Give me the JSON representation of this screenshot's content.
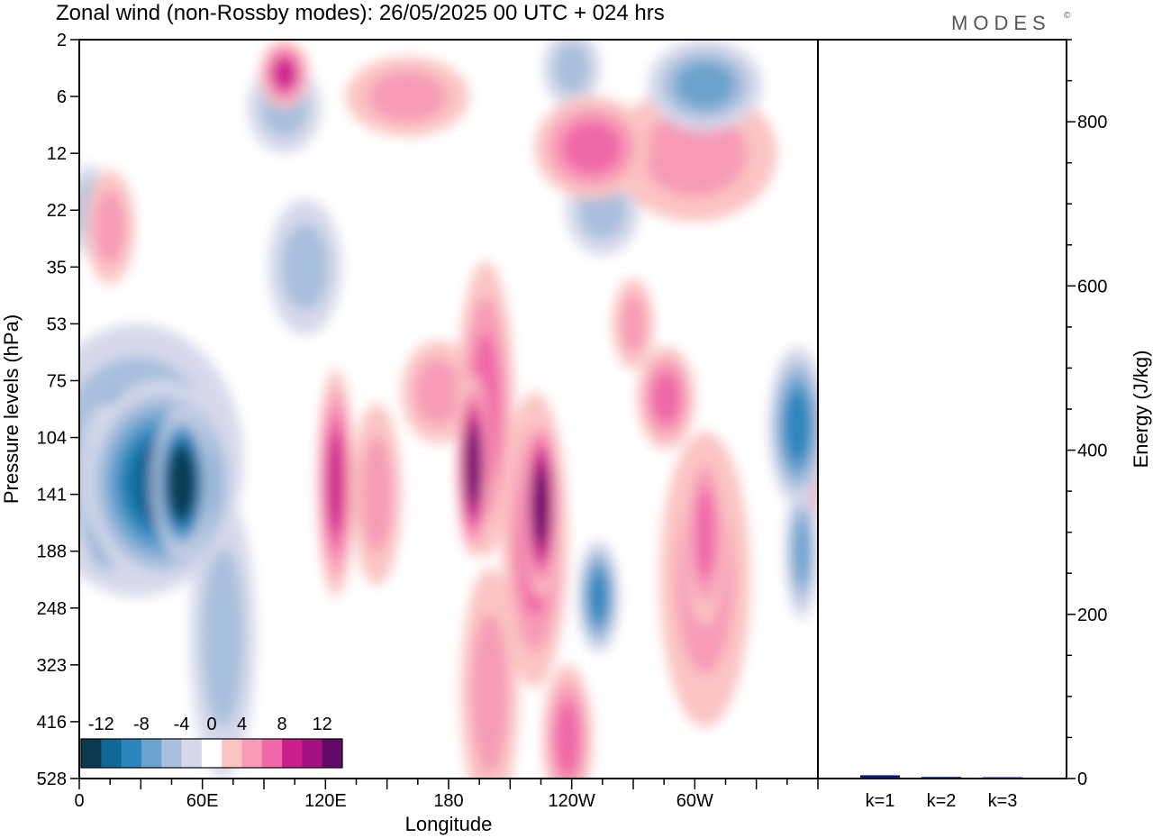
{
  "header": {
    "title": "Zonal wind (non-Rossby modes):  26/05/2025  00 UTC  + 024 hrs",
    "logo": "MODES",
    "logo_mark": "©"
  },
  "chart_data": [
    {
      "type": "heatmap",
      "title": "Zonal wind (non-Rossby modes):  26/05/2025  00 UTC  + 024 hrs",
      "xlabel": "Longitude",
      "ylabel": "Pressure levels (hPa)",
      "x_ticks": [
        "0",
        "60E",
        "120E",
        "180",
        "120W",
        "60W"
      ],
      "x_tick_degrees": [
        0,
        60,
        120,
        180,
        240,
        300
      ],
      "xlim_degrees": [
        0,
        360
      ],
      "y_ticks": [
        "2",
        "6",
        "12",
        "22",
        "35",
        "53",
        "75",
        "104",
        "141",
        "188",
        "248",
        "323",
        "416",
        "528"
      ],
      "colorbar": {
        "labels": [
          "-12",
          "-8",
          "-4",
          "0",
          "4",
          "8",
          "12"
        ],
        "levels": [
          -14,
          -12,
          -10,
          -8,
          -6,
          -4,
          -2,
          2,
          4,
          6,
          8,
          10,
          12,
          14
        ],
        "colors": [
          "#0b3a52",
          "#0f6896",
          "#2b86bd",
          "#6aa3cd",
          "#a8bfdd",
          "#d6d9ea",
          "#ffffff",
          "#fac4c2",
          "#f79bb7",
          "#ef68a8",
          "#cc1f8d",
          "#a3107f",
          "#610a6a"
        ]
      },
      "features": [
        {
          "lon": 50,
          "lev": 7.8,
          "value": -14,
          "rx": 14,
          "ry": 1.3
        },
        {
          "lon": 40,
          "lev": 7.8,
          "value": -10,
          "rx": 38,
          "ry": 1.8
        },
        {
          "lon": 14,
          "lev": 8.0,
          "value": -9,
          "rx": 16,
          "ry": 1.6
        },
        {
          "lon": 28,
          "lev": 7.4,
          "value": -6,
          "rx": 52,
          "ry": 2.4
        },
        {
          "lon": 70,
          "lev": 10.5,
          "value": -3,
          "rx": 16,
          "ry": 2.5
        },
        {
          "lon": 5,
          "lev": 3.0,
          "value": -3,
          "rx": 10,
          "ry": 0.8
        },
        {
          "lon": 110,
          "lev": 4.0,
          "value": -3,
          "rx": 18,
          "ry": 1.2
        },
        {
          "lon": 100,
          "lev": 1.2,
          "value": -4,
          "rx": 18,
          "ry": 0.8
        },
        {
          "lon": 195,
          "lev": 6.3,
          "value": -6,
          "rx": 8,
          "ry": 1.0
        },
        {
          "lon": 253,
          "lev": 9.8,
          "value": -7,
          "rx": 10,
          "ry": 1.0
        },
        {
          "lon": 350,
          "lev": 6.8,
          "value": -7,
          "rx": 14,
          "ry": 1.4
        },
        {
          "lon": 352,
          "lev": 9.0,
          "value": -5,
          "rx": 8,
          "ry": 1.2
        },
        {
          "lon": 305,
          "lev": 0.8,
          "value": -5,
          "rx": 28,
          "ry": 0.8
        },
        {
          "lon": 240,
          "lev": 0.5,
          "value": -4,
          "rx": 14,
          "ry": 0.7
        },
        {
          "lon": 255,
          "lev": 3.0,
          "value": -3,
          "rx": 18,
          "ry": 0.8
        },
        {
          "lon": 125,
          "lev": 7.8,
          "value": 7,
          "rx": 9,
          "ry": 2.0
        },
        {
          "lon": 145,
          "lev": 8.0,
          "value": 4,
          "rx": 12,
          "ry": 1.6
        },
        {
          "lon": 192,
          "lev": 7.5,
          "value": 12,
          "rx": 8,
          "ry": 1.6
        },
        {
          "lon": 198,
          "lev": 6.5,
          "value": 6,
          "rx": 14,
          "ry": 2.6
        },
        {
          "lon": 225,
          "lev": 8.2,
          "value": 12,
          "rx": 9,
          "ry": 1.6
        },
        {
          "lon": 222,
          "lev": 8.8,
          "value": 6,
          "rx": 16,
          "ry": 2.6
        },
        {
          "lon": 175,
          "lev": 6.2,
          "value": 4,
          "rx": 18,
          "ry": 0.9
        },
        {
          "lon": 238,
          "lev": 12.3,
          "value": 6,
          "rx": 12,
          "ry": 1.3
        },
        {
          "lon": 200,
          "lev": 11.5,
          "value": 3,
          "rx": 14,
          "ry": 2.2
        },
        {
          "lon": 305,
          "lev": 8.7,
          "value": 6,
          "rx": 10,
          "ry": 1.6
        },
        {
          "lon": 305,
          "lev": 9.5,
          "value": 3,
          "rx": 22,
          "ry": 2.6
        },
        {
          "lon": 286,
          "lev": 6.3,
          "value": 5,
          "rx": 14,
          "ry": 0.9
        },
        {
          "lon": 270,
          "lev": 5.0,
          "value": 4,
          "rx": 10,
          "ry": 0.8
        },
        {
          "lon": 250,
          "lev": 1.9,
          "value": 5,
          "rx": 28,
          "ry": 0.9
        },
        {
          "lon": 300,
          "lev": 2.0,
          "value": 3,
          "rx": 40,
          "ry": 1.2
        },
        {
          "lon": 100,
          "lev": 0.6,
          "value": 7,
          "rx": 12,
          "ry": 0.6
        },
        {
          "lon": 160,
          "lev": 1.0,
          "value": 4,
          "rx": 30,
          "ry": 0.7
        },
        {
          "lon": 30,
          "lev": 6.3,
          "value": 3,
          "rx": 30,
          "ry": 1.0
        },
        {
          "lon": 15,
          "lev": 3.3,
          "value": 3,
          "rx": 12,
          "ry": 1.0
        },
        {
          "lon": 358,
          "lev": 7.5,
          "value": 4,
          "rx": 6,
          "ry": 1.0
        }
      ]
    },
    {
      "type": "bar",
      "categories": [
        "k=1",
        "k=2",
        "k=3"
      ],
      "values": [
        4,
        2,
        1
      ],
      "ylabel": "Energy (J/kg)",
      "ylim": [
        0,
        900
      ],
      "y_ticks": [
        0,
        200,
        400,
        600,
        800
      ],
      "bar_color": "#0a1a6e"
    }
  ]
}
